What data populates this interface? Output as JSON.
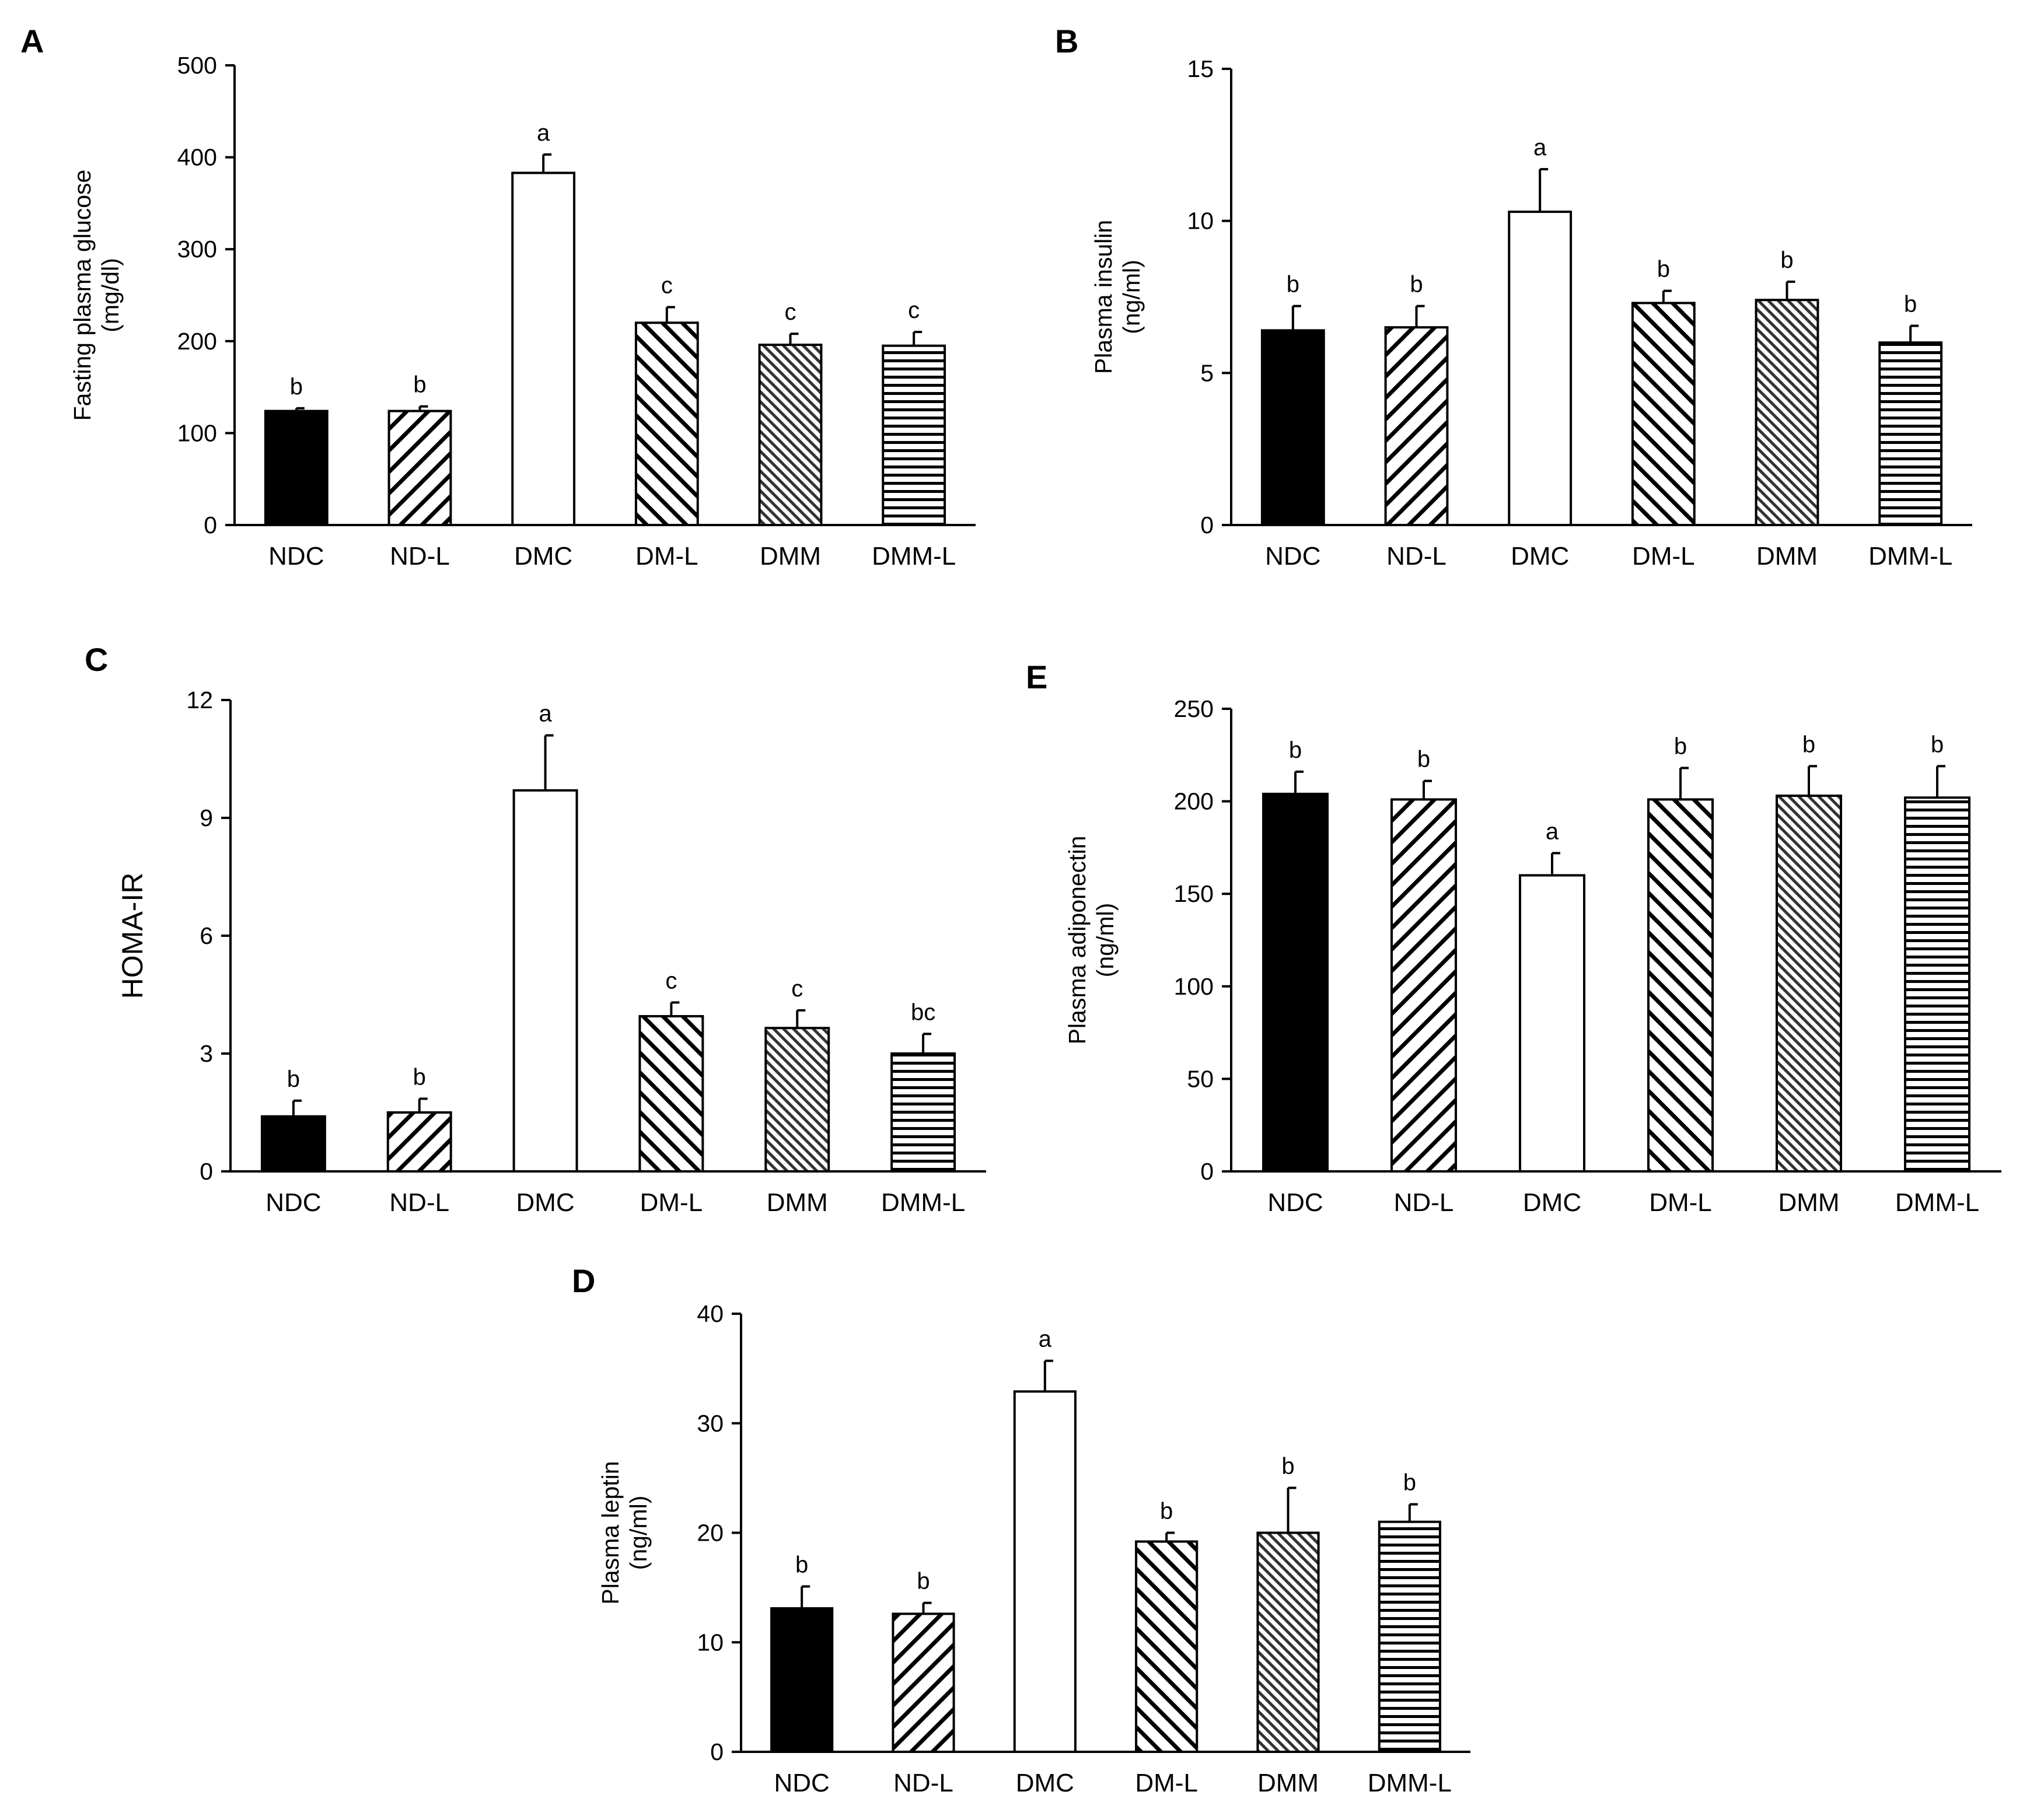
{
  "patterns": {
    "NDC": "solid-black",
    "ND-L": "diagonal-up",
    "DMC": "white",
    "DM-L": "diagonal-down",
    "DMM": "dense-diagonal-down",
    "DMM-L": "horizontal"
  },
  "chart_data": [
    {
      "id": "A",
      "type": "bar",
      "panel_label": "A",
      "categories": [
        "NDC",
        "ND-L",
        "DMC",
        "DM-L",
        "DMM",
        "DMM-L"
      ],
      "category_labels": [
        "NDC",
        "ND-L",
        "DMC",
        "DM-L",
        "DMM",
        "DMM-L"
      ],
      "values": [
        124,
        124,
        383,
        220,
        196,
        195
      ],
      "errors": [
        3,
        5,
        20,
        17,
        12,
        15
      ],
      "significance": [
        "b",
        "b",
        "a",
        "c",
        "c",
        "c"
      ],
      "ylabel_lines": [
        "Fasting plasma glucose",
        "(mg/dl)"
      ],
      "ylim": [
        0,
        500
      ],
      "yticks": [
        0,
        100,
        200,
        300,
        400,
        500
      ],
      "ytick_labels": [
        "0",
        "100",
        "200",
        "300",
        "400",
        "500"
      ]
    },
    {
      "id": "B",
      "type": "bar",
      "panel_label": "B",
      "categories": [
        "NDC",
        "ND-L",
        "DMC",
        "DM-L",
        "DMM",
        "DMM-L"
      ],
      "category_labels": [
        "NDC",
        "ND-L",
        "DMC",
        "DM-L",
        "DMM",
        "DMM-L"
      ],
      "values": [
        6.4,
        6.5,
        10.3,
        7.3,
        7.4,
        6.0
      ],
      "errors": [
        0.8,
        0.7,
        1.4,
        0.4,
        0.6,
        0.55
      ],
      "significance": [
        "b",
        "b",
        "a",
        "b",
        "b",
        "b"
      ],
      "ylabel_lines": [
        "Plasma insulin",
        "(ng/ml)"
      ],
      "ylim": [
        0,
        15
      ],
      "yticks": [
        0,
        5,
        10,
        15
      ],
      "ytick_labels": [
        "0",
        "5",
        "10",
        "15"
      ]
    },
    {
      "id": "C",
      "type": "bar",
      "panel_label": "C",
      "categories": [
        "NDC",
        "ND-L",
        "DMC",
        "DM-L",
        "DMM",
        "DMM-L"
      ],
      "category_labels": [
        "NDC",
        "ND-L",
        "DMC",
        "DM-L",
        "DMM",
        "DMM-L"
      ],
      "values": [
        1.4,
        1.5,
        9.7,
        3.95,
        3.65,
        3.0
      ],
      "errors": [
        0.4,
        0.35,
        1.4,
        0.35,
        0.45,
        0.5
      ],
      "significance": [
        "b",
        "b",
        "a",
        "c",
        "c",
        "bc"
      ],
      "ylabel_lines": [
        "HOMA-IR"
      ],
      "ylim": [
        0,
        12
      ],
      "yticks": [
        0,
        3,
        6,
        9,
        12
      ],
      "ytick_labels": [
        "0",
        "3",
        "6",
        "9",
        "12"
      ]
    },
    {
      "id": "E",
      "type": "bar",
      "panel_label": "E",
      "categories": [
        "NDC",
        "ND-L",
        "DMC",
        "DM-L",
        "DMM",
        "DMM-L"
      ],
      "category_labels": [
        "NDC",
        "ND-L",
        "DMC",
        "DM-L",
        "DMM",
        "DMM-L"
      ],
      "values": [
        204,
        201,
        160,
        201,
        203,
        202
      ],
      "errors": [
        12,
        10,
        12,
        17,
        16,
        17
      ],
      "significance": [
        "b",
        "b",
        "a",
        "b",
        "b",
        "b"
      ],
      "ylabel_lines": [
        "Plasma adiponectin",
        "(ng/ml)"
      ],
      "ylim": [
        0,
        250
      ],
      "yticks": [
        0,
        50,
        100,
        150,
        200,
        250
      ],
      "ytick_labels": [
        "0",
        "50",
        "100",
        "150",
        "200",
        "250"
      ]
    },
    {
      "id": "D",
      "type": "bar",
      "panel_label": "D",
      "categories": [
        "NDC",
        "ND-L",
        "DMC",
        "DM-L",
        "DMM",
        "DMM-L"
      ],
      "category_labels": [
        "NDC",
        "ND-L",
        "DMC",
        "DM-L",
        "DMM",
        "DMM-L"
      ],
      "values": [
        13.1,
        12.6,
        32.9,
        19.2,
        20.0,
        21.0
      ],
      "errors": [
        2.0,
        1.0,
        2.8,
        0.8,
        4.1,
        1.6
      ],
      "significance": [
        "b",
        "b",
        "a",
        "b",
        "b",
        "b"
      ],
      "ylabel_lines": [
        "Plasma leptin",
        "(ng/ml)"
      ],
      "ylim": [
        0,
        40
      ],
      "yticks": [
        0,
        10,
        20,
        30,
        40
      ],
      "ytick_labels": [
        "0",
        "10",
        "20",
        "30",
        "40"
      ]
    }
  ]
}
